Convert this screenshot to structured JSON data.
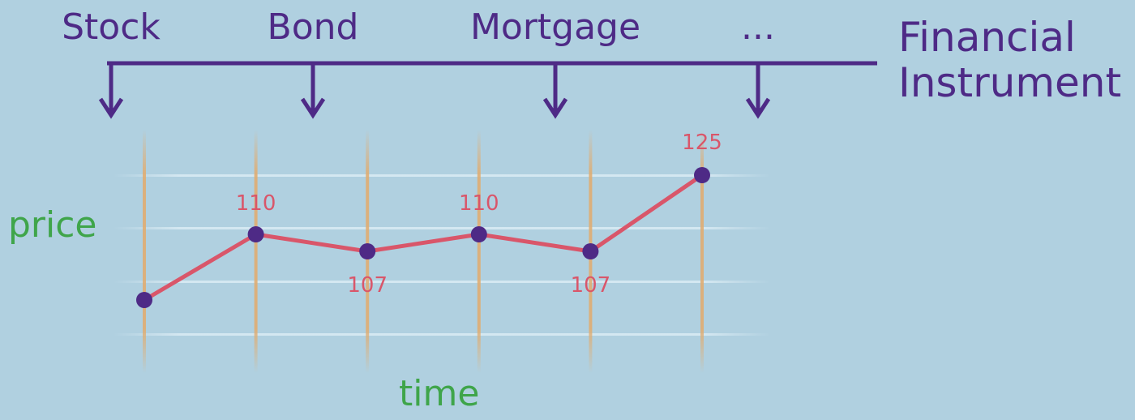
{
  "diagram": {
    "categories": [
      "Stock",
      "Bond",
      "Mortgage",
      "..."
    ],
    "instrument_title_lines": [
      "Financial",
      "Instrument"
    ],
    "colors": {
      "background": "#b0d0e0",
      "purple": "#4e2a86",
      "green": "#3fa54a",
      "line": "#d9566a",
      "time_marker": "#e0ad72",
      "gridline": "#cfe3ee"
    }
  },
  "chart_data": {
    "type": "line",
    "xlabel": "time",
    "ylabel": "price",
    "x": [
      1,
      2,
      3,
      4,
      5,
      6
    ],
    "series": [
      {
        "values": [
          null,
          110,
          107,
          110,
          107,
          125
        ]
      }
    ],
    "data_labels": [
      "",
      "110",
      "107",
      "110",
      "107",
      "125"
    ],
    "grid": true
  }
}
